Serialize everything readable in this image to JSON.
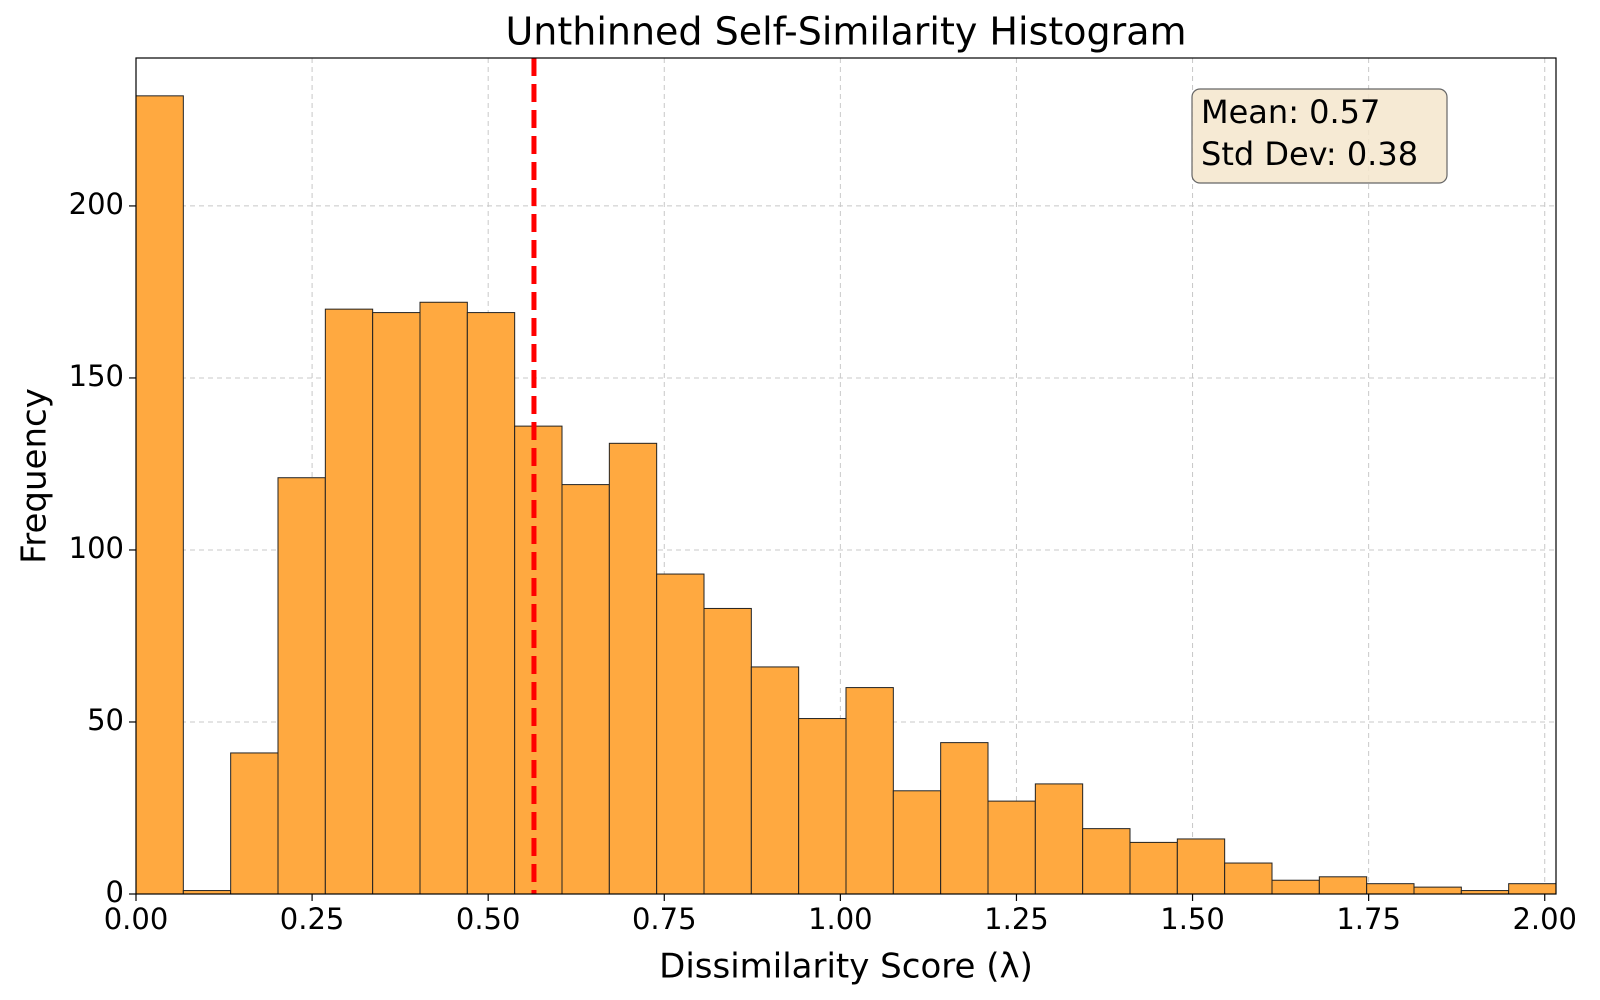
{
  "chart_data": {
    "type": "histogram",
    "title": "Unthinned Self-Similarity Histogram",
    "x_label": "Dissimilarity Score (λ)",
    "y_label": "Frequency",
    "bins": [
      0,
      0.0672,
      0.1344,
      0.2016,
      0.2688,
      0.336,
      0.4032,
      0.4704,
      0.5376,
      0.6048,
      0.672,
      0.7392,
      0.8064,
      0.8736,
      0.9408,
      1.008,
      1.0752,
      1.1424,
      1.2096,
      1.2768,
      1.344,
      1.4112,
      1.4784,
      1.5456,
      1.6128,
      1.68,
      1.7472,
      1.8144,
      1.8816,
      1.9488,
      2.016
    ],
    "values": [
      232,
      1,
      41,
      121,
      170,
      169,
      172,
      169,
      136,
      119,
      131,
      93,
      83,
      66,
      51,
      60,
      30,
      44,
      27,
      32,
      19,
      15,
      16,
      9,
      4,
      5,
      3,
      2,
      1,
      3
    ],
    "color": "#ffa940",
    "edge_color": "#222222",
    "xlim": [
      0,
      2.016
    ],
    "ylim": [
      0,
      243
    ],
    "xticks": [
      {
        "value": 0,
        "label": "0.00"
      },
      {
        "value": 0.25,
        "label": "0.25"
      },
      {
        "value": 0.5,
        "label": "0.50"
      },
      {
        "value": 0.75,
        "label": "0.75"
      },
      {
        "value": 1,
        "label": "1.00"
      },
      {
        "value": 1.25,
        "label": "1.25"
      },
      {
        "value": 1.5,
        "label": "1.50"
      },
      {
        "value": 1.75,
        "label": "1.75"
      },
      {
        "value": 2,
        "label": "2.00"
      }
    ],
    "yticks": [
      0,
      50,
      100,
      150,
      200
    ],
    "grid": true,
    "mean_line": {
      "x": 0.565,
      "color": "#ff0000"
    },
    "annotation": [
      "Mean: 0.57",
      "Std Dev: 0.38"
    ]
  }
}
